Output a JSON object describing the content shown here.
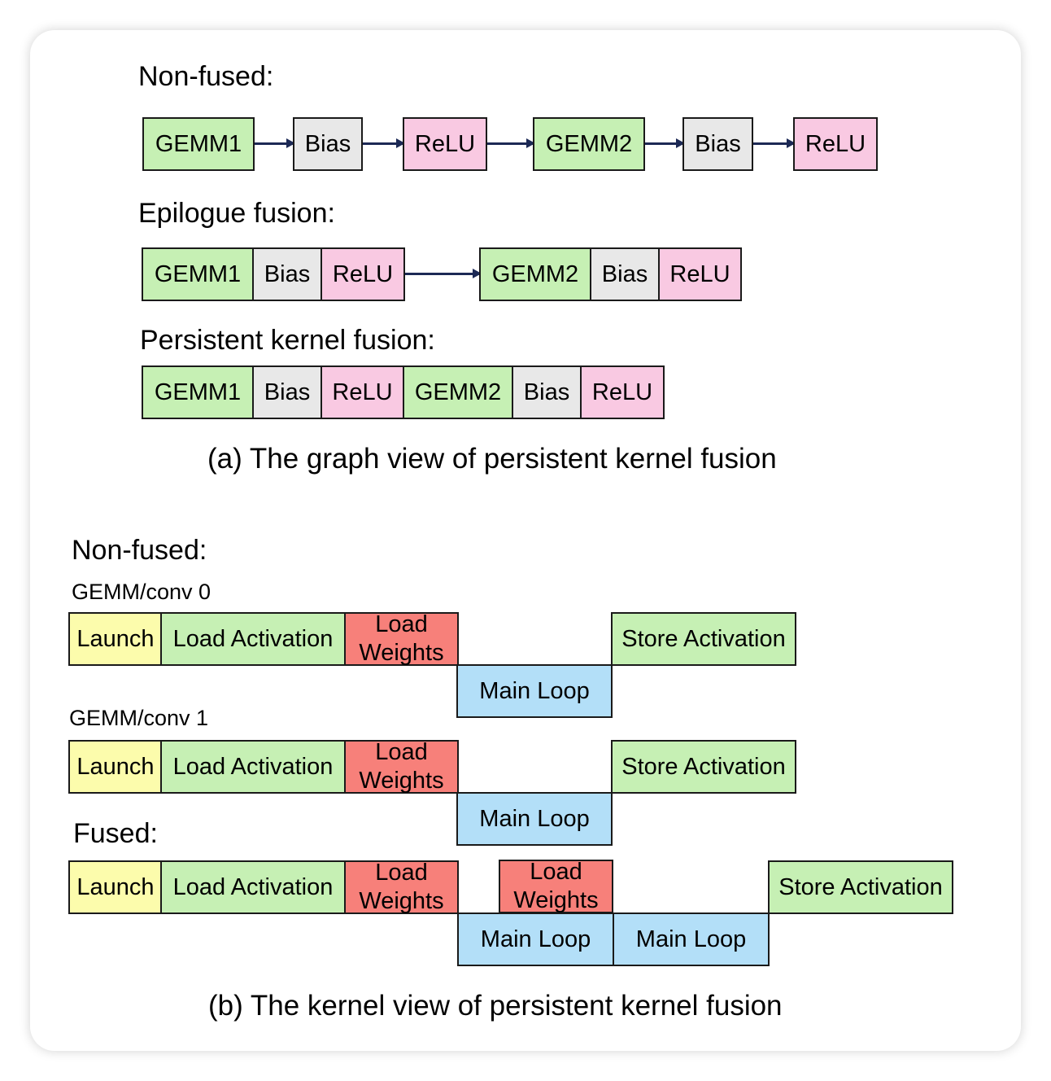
{
  "graph_view": {
    "non_fused_label": "Non-fused:",
    "non_fused": [
      "GEMM1",
      "Bias",
      "ReLU",
      "GEMM2",
      "Bias",
      "ReLU"
    ],
    "epilogue_label": "Epilogue fusion:",
    "epilogue_group1": [
      "GEMM1",
      "Bias",
      "ReLU"
    ],
    "epilogue_group2": [
      "GEMM2",
      "Bias",
      "ReLU"
    ],
    "persistent_label": "Persistent kernel fusion:",
    "persistent": [
      "GEMM1",
      "Bias",
      "ReLU",
      "GEMM2",
      "Bias",
      "ReLU"
    ],
    "caption": "(a) The graph view of persistent kernel fusion"
  },
  "kernel_view": {
    "non_fused_label": "Non-fused:",
    "gemm0_label": "GEMM/conv 0",
    "gemm1_label": "GEMM/conv 1",
    "fused_label": "Fused:",
    "launch": "Launch",
    "load_activation": "Load Activation",
    "load_weights_line1": "Load",
    "load_weights_line2": "Weights",
    "main_loop": "Main Loop",
    "store_activation": "Store Activation",
    "caption": "(b) The kernel view of persistent kernel fusion"
  },
  "colors": {
    "gemm": "#c6f0b4",
    "bias": "#e8e8e8",
    "relu": "#f9c9e2",
    "launch": "#fcfcac",
    "load_weights": "#f7807a",
    "main_loop": "#b3dff8",
    "arrow": "#1c2955"
  }
}
